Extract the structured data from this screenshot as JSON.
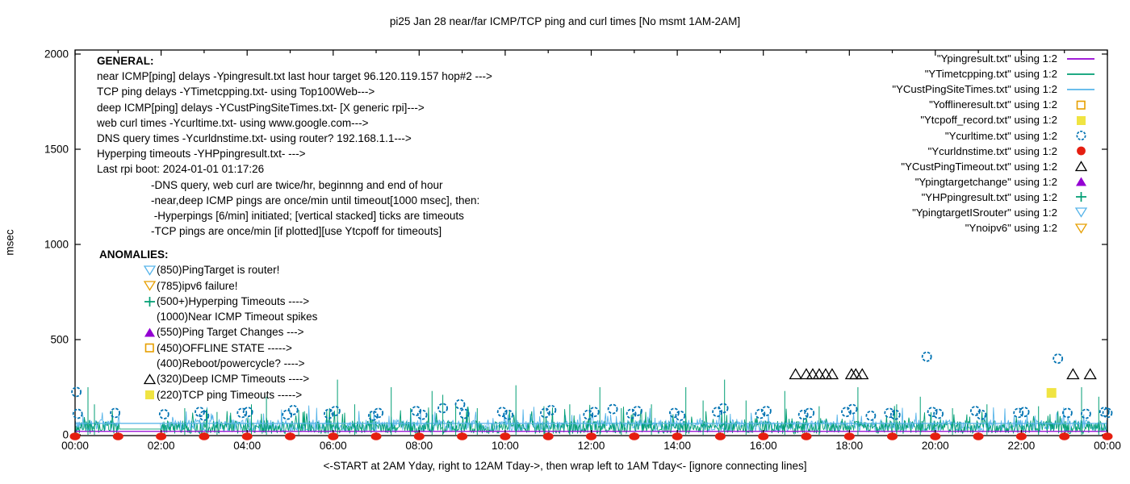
{
  "title": "pi25 Jan 28  near/far ICMP/TCP ping and curl times [No msmt 1AM-2AM]",
  "footer": "<-START at 2AM Yday, right to 12AM Tday->, then wrap left to 1AM Tday<- [ignore connecting lines]",
  "ylabel": "msec",
  "colors": {
    "near_icmp": "#9400d3",
    "tcp_ping": "#009e73",
    "deep_icmp": "#56b4e9",
    "offline": "#e69f00",
    "tcp_timeout": "#f0e442",
    "curl": "#0072b2",
    "dns": "#e51e10",
    "deep_timeout": "#000000"
  },
  "general": {
    "heading": "GENERAL:",
    "lines": [
      "near ICMP[ping] delays -Ypingresult.txt last hour target 96.120.119.157 hop#2 --->",
      "TCP ping delays -YTimetcpping.txt- using Top100Web--->",
      "deep ICMP[ping] delays -YCustPingSiteTimes.txt- [X generic rpi]--->",
      "web curl times -Ycurltime.txt- using www.google.com--->",
      "DNS query times -Ycurldnstime.txt- using router? 192.168.1.1--->",
      "Hyperping timeouts -YHPpingresult.txt- --->",
      "Last rpi boot: 2024-01-01 01:17:26"
    ],
    "notes": [
      "-DNS query, web curl are twice/hr, beginnng and end of hour",
      "-near,deep ICMP pings are once/min until timeout[1000 msec], then:",
      " -Hyperpings [6/min] initiated; [vertical stacked] ticks are timeouts",
      "-TCP pings are once/min [if plotted][use Ytcpoff for timeouts]"
    ]
  },
  "anomalies": {
    "heading": "ANOMALIES:",
    "items": [
      {
        "icon": "triangle-down-open",
        "color": "#56b4e9",
        "label": "(850)PingTarget is router!"
      },
      {
        "icon": "triangle-down-open",
        "color": "#e69f00",
        "label": "(785)ipv6 failure!"
      },
      {
        "icon": "plus",
        "color": "#009e73",
        "label": "(500+)Hyperping Timeouts ---->"
      },
      {
        "icon": "none",
        "color": "#000000",
        "label": "(1000)Near ICMP Timeout spikes"
      },
      {
        "icon": "triangle-filled",
        "color": "#9400d3",
        "label": "(550)Ping Target Changes --->"
      },
      {
        "icon": "square-open",
        "color": "#e69f00",
        "label": "(450)OFFLINE STATE ----->"
      },
      {
        "icon": "none",
        "color": "#000000",
        "label": "(400)Reboot/powercycle? ---->"
      },
      {
        "icon": "triangle-open",
        "color": "#000000",
        "label": "(320)Deep ICMP Timeouts ---->"
      },
      {
        "icon": "square-filled",
        "color": "#f0e442",
        "label": "(220)TCP ping Timeouts ----->"
      }
    ]
  },
  "legend": {
    "entries": [
      {
        "label": "\"Ypingresult.txt\" using 1:2",
        "icon": "line",
        "color": "#9400d3"
      },
      {
        "label": "\"YTimetcpping.txt\" using 1:2",
        "icon": "line",
        "color": "#009e73"
      },
      {
        "label": "\"YCustPingSiteTimes.txt\" using 1:2",
        "icon": "line",
        "color": "#56b4e9"
      },
      {
        "label": "\"Yofflineresult.txt\" using 1:2",
        "icon": "square-open",
        "color": "#e69f00"
      },
      {
        "label": "\"Ytcpoff_record.txt\" using 1:2",
        "icon": "square-filled",
        "color": "#f0e442"
      },
      {
        "label": "\"Ycurltime.txt\" using 1:2",
        "icon": "circle-open",
        "color": "#0072b2"
      },
      {
        "label": "\"Ycurldnstime.txt\" using 1:2",
        "icon": "circle-filled",
        "color": "#e51e10"
      },
      {
        "label": "\"YCustPingTimeout.txt\" using 1:2",
        "icon": "triangle-open",
        "color": "#000000"
      },
      {
        "label": "\"Ypingtargetchange\" using 1:2",
        "icon": "triangle-filled",
        "color": "#9400d3"
      },
      {
        "label": "\"YHPpingresult.txt\" using 1:2",
        "icon": "plus",
        "color": "#009e73"
      },
      {
        "label": "\"YpingtargetISrouter\" using 1:2",
        "icon": "triangle-down-open",
        "color": "#56b4e9"
      },
      {
        "label": "\"Ynoipv6\" using 1:2",
        "icon": "triangle-down-open",
        "color": "#e69f00"
      }
    ]
  },
  "chart_data": {
    "type": "line",
    "x_axis": {
      "unit": "hours",
      "range": [
        0,
        24
      ],
      "tick_labels": [
        "00:00",
        "02:00",
        "04:00",
        "06:00",
        "08:00",
        "10:00",
        "12:00",
        "14:00",
        "16:00",
        "18:00",
        "20:00",
        "22:00",
        "00:00"
      ]
    },
    "y_axis": {
      "label": "msec",
      "range": [
        0,
        2000
      ],
      "ticks": [
        0,
        500,
        1000,
        1500,
        2000
      ]
    },
    "no_measurement_window_hours": [
      1,
      2
    ],
    "series": [
      {
        "name": "Ypingresult.txt near ICMP ping",
        "style": "line",
        "color": "#9400d3",
        "approx_flat_msec": 18
      },
      {
        "name": "YTimetcpping.txt TCP ping",
        "style": "line",
        "color": "#009e73",
        "noise_band_msec": [
          5,
          75
        ],
        "spikes": [
          [
            0.3,
            250
          ],
          [
            0.45,
            160
          ],
          [
            2.55,
            140
          ],
          [
            3.05,
            130
          ],
          [
            3.3,
            120
          ],
          [
            4.1,
            160
          ],
          [
            4.45,
            200
          ],
          [
            5.2,
            130
          ],
          [
            6.1,
            290
          ],
          [
            6.5,
            160
          ],
          [
            7.35,
            250
          ],
          [
            7.8,
            140
          ],
          [
            8.3,
            230
          ],
          [
            8.55,
            210
          ],
          [
            8.85,
            160
          ],
          [
            9.35,
            140
          ],
          [
            10.25,
            260
          ],
          [
            10.9,
            150
          ],
          [
            11.5,
            160
          ],
          [
            12.2,
            250
          ],
          [
            12.7,
            140
          ],
          [
            13.4,
            160
          ],
          [
            14.2,
            250
          ],
          [
            14.6,
            180
          ],
          [
            15.1,
            290
          ],
          [
            15.6,
            180
          ],
          [
            16.5,
            230
          ],
          [
            17.3,
            150
          ],
          [
            18.2,
            250
          ],
          [
            19.1,
            160
          ],
          [
            19.65,
            200
          ],
          [
            20.4,
            140
          ],
          [
            21.2,
            160
          ],
          [
            22.4,
            150
          ],
          [
            23.4,
            250
          ],
          [
            23.8,
            200
          ]
        ]
      },
      {
        "name": "YCustPingSiteTimes.txt deep ICMP ping",
        "style": "line",
        "color": "#56b4e9",
        "noise_band_msec": [
          15,
          80
        ],
        "flat_line_msec": 60
      },
      {
        "name": "Ycurltime.txt web curl times",
        "style": "open-circle",
        "color": "#0072b2",
        "points": [
          [
            0.03,
            225
          ],
          [
            0.06,
            110
          ],
          [
            0.93,
            115
          ],
          [
            2.07,
            108
          ],
          [
            2.9,
            120
          ],
          [
            3.0,
            100
          ],
          [
            3.88,
            115
          ],
          [
            4.02,
            120
          ],
          [
            4.93,
            105
          ],
          [
            5.07,
            130
          ],
          [
            5.9,
            110
          ],
          [
            6.05,
            125
          ],
          [
            6.93,
            100
          ],
          [
            7.05,
            115
          ],
          [
            7.93,
            125
          ],
          [
            8.07,
            105
          ],
          [
            8.55,
            140
          ],
          [
            8.95,
            160
          ],
          [
            9.05,
            110
          ],
          [
            9.93,
            120
          ],
          [
            10.07,
            105
          ],
          [
            10.93,
            115
          ],
          [
            11.07,
            130
          ],
          [
            11.93,
            105
          ],
          [
            12.07,
            120
          ],
          [
            12.5,
            135
          ],
          [
            12.93,
            110
          ],
          [
            13.07,
            125
          ],
          [
            13.93,
            115
          ],
          [
            14.07,
            100
          ],
          [
            14.93,
            120
          ],
          [
            15.07,
            140
          ],
          [
            15.93,
            110
          ],
          [
            16.07,
            125
          ],
          [
            16.93,
            105
          ],
          [
            17.07,
            115
          ],
          [
            17.93,
            120
          ],
          [
            18.07,
            135
          ],
          [
            18.5,
            100
          ],
          [
            18.93,
            115
          ],
          [
            19.07,
            105
          ],
          [
            19.8,
            410
          ],
          [
            19.93,
            120
          ],
          [
            20.07,
            110
          ],
          [
            20.93,
            125
          ],
          [
            21.07,
            105
          ],
          [
            21.93,
            115
          ],
          [
            22.07,
            120
          ],
          [
            22.85,
            400
          ],
          [
            23.07,
            115
          ],
          [
            23.5,
            110
          ],
          [
            23.93,
            120
          ],
          [
            24.0,
            115
          ]
        ]
      },
      {
        "name": "Ycurldnstime.txt DNS query times",
        "style": "filled-circle",
        "color": "#e51e10",
        "points_every_hour_msec": 0
      },
      {
        "name": "YCustPingTimeout.txt deep ICMP timeouts",
        "style": "open-triangle",
        "color": "#000000",
        "points": [
          [
            16.75,
            320
          ],
          [
            17.0,
            320
          ],
          [
            17.15,
            320
          ],
          [
            17.3,
            320
          ],
          [
            17.45,
            320
          ],
          [
            17.6,
            320
          ],
          [
            18.05,
            320
          ],
          [
            18.15,
            320
          ],
          [
            18.3,
            320
          ],
          [
            23.2,
            320
          ],
          [
            23.6,
            320
          ]
        ]
      },
      {
        "name": "Ytcpoff_record.txt TCP ping timeouts",
        "style": "filled-square",
        "color": "#f0e442",
        "points": [
          [
            22.7,
            220
          ]
        ]
      }
    ]
  }
}
